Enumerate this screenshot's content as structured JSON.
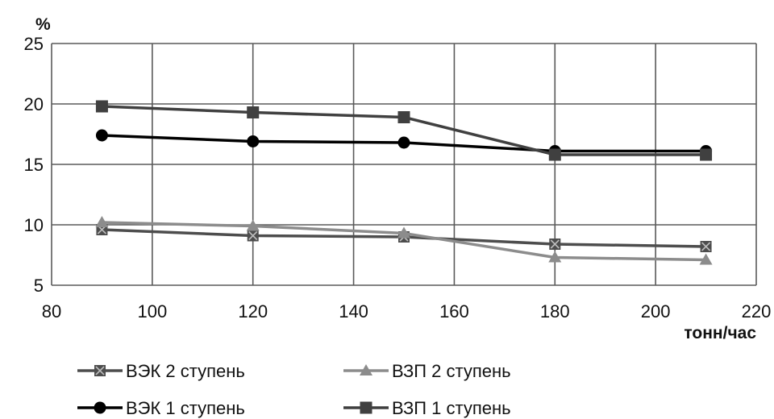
{
  "chart_data": {
    "type": "line",
    "title": "",
    "xlabel": "тонн/час",
    "ylabel": "%",
    "xlim": [
      80,
      220
    ],
    "ylim": [
      5,
      25
    ],
    "xticks": [
      80,
      100,
      120,
      140,
      160,
      180,
      200,
      220
    ],
    "yticks": [
      5,
      10,
      15,
      20,
      25
    ],
    "grid": true,
    "legend_position": "bottom",
    "series": [
      {
        "name": "ВЭК 2 ступень",
        "color": "#4d4d4d",
        "marker": "x-square",
        "x": [
          90,
          120,
          150,
          180,
          210
        ],
        "y": [
          9.6,
          9.1,
          9.0,
          8.4,
          8.2
        ]
      },
      {
        "name": "ВЗП 2 ступень",
        "color": "#8c8c8c",
        "marker": "triangle",
        "x": [
          90,
          120,
          150,
          180,
          210
        ],
        "y": [
          10.2,
          9.9,
          9.3,
          7.3,
          7.1
        ]
      },
      {
        "name": "ВЭК 1 ступень",
        "color": "#000000",
        "marker": "circle",
        "x": [
          90,
          120,
          150,
          180,
          210
        ],
        "y": [
          17.4,
          16.9,
          16.8,
          16.1,
          16.1
        ]
      },
      {
        "name": "ВЗП 1 ступень",
        "color": "#404040",
        "marker": "square",
        "x": [
          90,
          120,
          150,
          180,
          210
        ],
        "y": [
          19.8,
          19.3,
          18.9,
          15.8,
          15.8
        ]
      }
    ]
  }
}
